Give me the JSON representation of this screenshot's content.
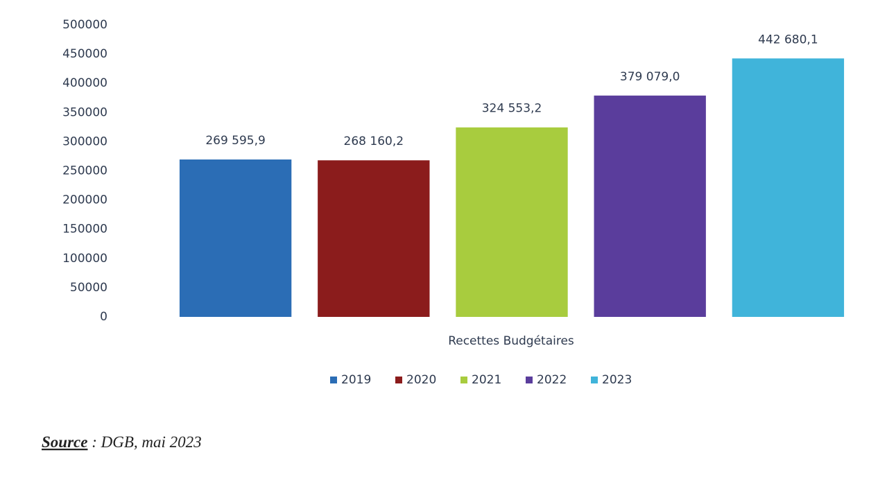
{
  "chart_data": {
    "type": "bar",
    "x_label": "Recettes Budgétaires",
    "categories": [
      "Recettes Budgétaires"
    ],
    "series": [
      {
        "name": "2019",
        "color": "#2b6db5",
        "values": [
          269595.9
        ],
        "value_labels": [
          "269 595,9"
        ]
      },
      {
        "name": "2020",
        "color": "#8b1c1c",
        "values": [
          268160.2
        ],
        "value_labels": [
          "268 160,2"
        ]
      },
      {
        "name": "2021",
        "color": "#a8cc3e",
        "values": [
          324553.2
        ],
        "value_labels": [
          "324 553,2"
        ]
      },
      {
        "name": "2022",
        "color": "#5a3d9c",
        "values": [
          379079.0
        ],
        "value_labels": [
          "379 079,0"
        ]
      },
      {
        "name": "2023",
        "color": "#40b4da",
        "values": [
          442680.1
        ],
        "value_labels": [
          "442 680,1"
        ]
      }
    ],
    "ylim": [
      0,
      500000
    ],
    "yticks": [
      0,
      50000,
      100000,
      150000,
      200000,
      250000,
      300000,
      350000,
      400000,
      450000,
      500000
    ],
    "grid": false,
    "legend": "bottom"
  },
  "source": {
    "label": "Source",
    "text": " : DGB, mai 2023"
  }
}
